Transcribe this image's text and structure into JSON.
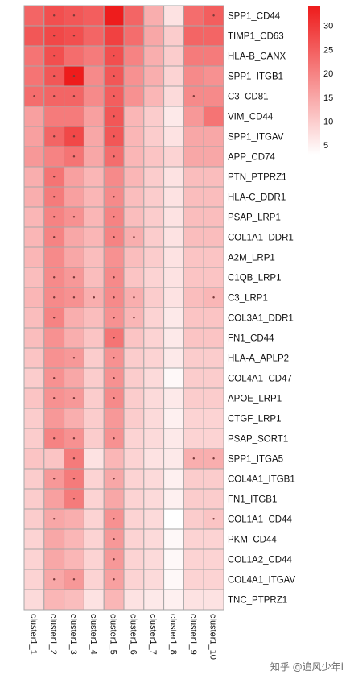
{
  "chart_data": {
    "type": "heatmap",
    "columns": [
      "cluster1_1",
      "cluster1_2",
      "cluster1_3",
      "cluster1_4",
      "cluster1_5",
      "cluster1_6",
      "cluster1_7",
      "cluster1_8",
      "cluster1_9",
      "cluster1_10"
    ],
    "rows": [
      "SPP1_CD44",
      "TIMP1_CD63",
      "HLA-B_CANX",
      "SPP1_ITGB1",
      "C3_CD81",
      "VIM_CD44",
      "SPP1_ITGAV",
      "APP_CD74",
      "PTN_PTPRZ1",
      "HLA-C_DDR1",
      "PSAP_LRP1",
      "COL1A1_DDR1",
      "A2M_LRP1",
      "C1QB_LRP1",
      "C3_LRP1",
      "COL3A1_DDR1",
      "FN1_CD44",
      "HLA-A_APLP2",
      "COL4A1_CD47",
      "APOE_LRP1",
      "CTGF_LRP1",
      "PSAP_SORT1",
      "SPP1_ITGA5",
      "COL4A1_ITGB1",
      "FN1_ITGB1",
      "COL1A1_CD44",
      "PKM_CD44",
      "COL1A2_CD44",
      "COL4A1_ITGAV",
      "TNC_PTPRZ1"
    ],
    "values": [
      [
        24,
        27,
        26,
        25,
        34,
        24,
        14,
        7,
        23,
        25
      ],
      [
        26,
        28,
        27,
        24,
        29,
        23,
        15,
        10,
        24,
        24
      ],
      [
        22,
        27,
        23,
        21,
        27,
        20,
        14,
        10,
        21,
        21
      ],
      [
        22,
        26,
        34,
        19,
        26,
        18,
        14,
        9,
        19,
        18
      ],
      [
        23,
        24,
        24,
        19,
        25,
        18,
        13,
        8,
        19,
        19
      ],
      [
        16,
        21,
        21,
        16,
        26,
        13,
        10,
        6,
        17,
        22
      ],
      [
        16,
        24,
        28,
        15,
        26,
        13,
        10,
        7,
        15,
        15
      ],
      [
        17,
        20,
        22,
        15,
        23,
        13,
        11,
        9,
        15,
        15
      ],
      [
        14,
        22,
        16,
        13,
        19,
        13,
        10,
        7,
        12,
        12
      ],
      [
        14,
        21,
        16,
        13,
        19,
        12,
        10,
        7,
        12,
        12
      ],
      [
        13,
        20,
        18,
        13,
        20,
        12,
        10,
        7,
        12,
        12
      ],
      [
        13,
        20,
        15,
        13,
        20,
        14,
        10,
        7,
        12,
        12
      ],
      [
        13,
        19,
        15,
        12,
        18,
        12,
        10,
        7,
        11,
        11
      ],
      [
        12,
        19,
        17,
        12,
        19,
        11,
        9,
        7,
        11,
        11
      ],
      [
        13,
        19,
        18,
        14,
        19,
        14,
        10,
        7,
        12,
        13
      ],
      [
        12,
        20,
        14,
        12,
        18,
        13,
        9,
        6,
        11,
        11
      ],
      [
        12,
        18,
        14,
        11,
        22,
        11,
        9,
        6,
        11,
        11
      ],
      [
        11,
        18,
        17,
        10,
        18,
        10,
        9,
        6,
        10,
        10
      ],
      [
        10,
        18,
        15,
        10,
        18,
        10,
        8,
        4,
        10,
        10
      ],
      [
        11,
        18,
        17,
        10,
        19,
        10,
        8,
        6,
        10,
        10
      ],
      [
        10,
        17,
        14,
        10,
        17,
        10,
        8,
        5,
        9,
        9
      ],
      [
        10,
        20,
        18,
        10,
        18,
        9,
        8,
        6,
        9,
        9
      ],
      [
        11,
        11,
        21,
        7,
        13,
        9,
        7,
        6,
        14,
        14
      ],
      [
        10,
        17,
        21,
        9,
        15,
        9,
        8,
        5,
        10,
        10
      ],
      [
        10,
        16,
        21,
        9,
        15,
        9,
        8,
        5,
        10,
        10
      ],
      [
        10,
        15,
        14,
        9,
        18,
        9,
        8,
        3,
        10,
        11
      ],
      [
        9,
        15,
        13,
        9,
        17,
        9,
        8,
        4,
        9,
        9
      ],
      [
        9,
        15,
        13,
        9,
        17,
        9,
        8,
        4,
        9,
        9
      ],
      [
        9,
        15,
        17,
        9,
        16,
        9,
        8,
        4,
        9,
        9
      ],
      [
        8,
        13,
        12,
        7,
        13,
        7,
        6,
        5,
        7,
        7
      ]
    ],
    "significant": [
      [
        0,
        1,
        1,
        0,
        0,
        0,
        0,
        0,
        0,
        1
      ],
      [
        0,
        1,
        1,
        0,
        0,
        0,
        0,
        0,
        0,
        0
      ],
      [
        0,
        1,
        0,
        0,
        1,
        0,
        0,
        0,
        0,
        0
      ],
      [
        0,
        1,
        1,
        0,
        1,
        0,
        0,
        0,
        0,
        0
      ],
      [
        1,
        1,
        1,
        0,
        1,
        0,
        0,
        0,
        1,
        0
      ],
      [
        0,
        0,
        0,
        0,
        1,
        0,
        0,
        0,
        0,
        0
      ],
      [
        0,
        1,
        1,
        0,
        1,
        0,
        0,
        0,
        0,
        0
      ],
      [
        0,
        0,
        1,
        0,
        1,
        0,
        0,
        0,
        0,
        0
      ],
      [
        0,
        1,
        0,
        0,
        0,
        0,
        0,
        0,
        0,
        0
      ],
      [
        0,
        1,
        0,
        0,
        1,
        0,
        0,
        0,
        0,
        0
      ],
      [
        0,
        1,
        1,
        0,
        1,
        0,
        0,
        0,
        0,
        0
      ],
      [
        0,
        1,
        0,
        0,
        1,
        1,
        0,
        0,
        0,
        0
      ],
      [
        0,
        0,
        0,
        0,
        0,
        0,
        0,
        0,
        0,
        0
      ],
      [
        0,
        1,
        1,
        0,
        1,
        0,
        0,
        0,
        0,
        0
      ],
      [
        0,
        1,
        1,
        1,
        1,
        1,
        0,
        0,
        0,
        1
      ],
      [
        0,
        1,
        0,
        0,
        1,
        1,
        0,
        0,
        0,
        0
      ],
      [
        0,
        0,
        0,
        0,
        1,
        0,
        0,
        0,
        0,
        0
      ],
      [
        0,
        0,
        1,
        0,
        1,
        0,
        0,
        0,
        0,
        0
      ],
      [
        0,
        1,
        0,
        0,
        1,
        0,
        0,
        0,
        0,
        0
      ],
      [
        0,
        1,
        1,
        0,
        1,
        0,
        0,
        0,
        0,
        0
      ],
      [
        0,
        0,
        0,
        0,
        0,
        0,
        0,
        0,
        0,
        0
      ],
      [
        0,
        1,
        1,
        0,
        1,
        0,
        0,
        0,
        0,
        0
      ],
      [
        0,
        0,
        1,
        0,
        0,
        0,
        0,
        0,
        1,
        1
      ],
      [
        0,
        1,
        1,
        0,
        1,
        0,
        0,
        0,
        0,
        0
      ],
      [
        0,
        0,
        1,
        0,
        0,
        0,
        0,
        0,
        0,
        0
      ],
      [
        0,
        1,
        0,
        0,
        1,
        0,
        0,
        0,
        0,
        1
      ],
      [
        0,
        0,
        0,
        0,
        1,
        0,
        0,
        0,
        0,
        0
      ],
      [
        0,
        0,
        0,
        0,
        1,
        0,
        0,
        0,
        0,
        0
      ],
      [
        0,
        1,
        1,
        0,
        1,
        0,
        0,
        0,
        0,
        0
      ],
      [
        0,
        0,
        0,
        0,
        0,
        0,
        0,
        0,
        0,
        0
      ]
    ],
    "color_range": [
      3,
      34
    ],
    "color_low": "#ffffff",
    "color_high": "#ee1c1c",
    "legend": {
      "placement": "top-right",
      "ticks": [
        30,
        25,
        20,
        15,
        10,
        5
      ]
    },
    "sig_marker": "•",
    "grid": true
  },
  "watermark": "知乎 @追风少年i"
}
